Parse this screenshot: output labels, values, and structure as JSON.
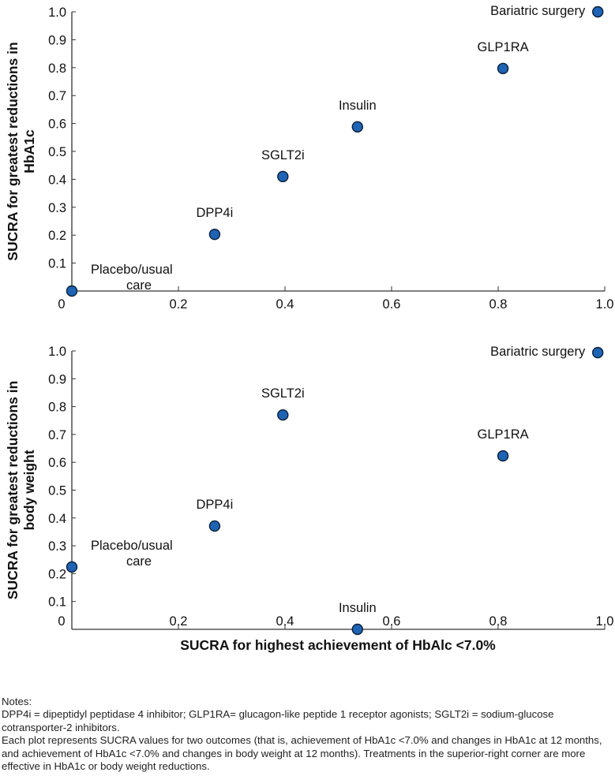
{
  "chart_data": [
    {
      "type": "scatter",
      "title": "",
      "xlabel": "",
      "ylabel_lines": [
        "SUCRA for greatest reductions in",
        "HbA1c"
      ],
      "xlim": [
        0,
        1.0
      ],
      "ylim": [
        0,
        1.0
      ],
      "xticks": [
        "0",
        "0.2",
        "0.4",
        "0.6",
        "0.8",
        "1.0"
      ],
      "yticks": [
        "0.1",
        "0.2",
        "0.3",
        "0.4",
        "0.5",
        "0.6",
        "0.7",
        "0.8",
        "0.9",
        "1.0"
      ],
      "grid": false,
      "points": [
        {
          "label_lines": [
            "Placebo/usual",
            "care"
          ],
          "x": 0.0,
          "y": 0.0
        },
        {
          "label_lines": [
            "DPP4i"
          ],
          "x": 0.268,
          "y": 0.203
        },
        {
          "label_lines": [
            "SGLT2i"
          ],
          "x": 0.396,
          "y": 0.41
        },
        {
          "label_lines": [
            "Insulin"
          ],
          "x": 0.536,
          "y": 0.588
        },
        {
          "label_lines": [
            "GLP1RA"
          ],
          "x": 0.809,
          "y": 0.797
        },
        {
          "label_lines": [
            "Bariatric surgery"
          ],
          "x": 0.987,
          "y": 1.0
        }
      ]
    },
    {
      "type": "scatter",
      "title": "",
      "xlabel": "SUCRA for highest achievement of HbAlc <7.0%",
      "ylabel_lines": [
        "SUCRA for greatest reductions in",
        "body weight"
      ],
      "xlim": [
        0,
        1.0
      ],
      "ylim": [
        0,
        1.0
      ],
      "xticks": [
        "0",
        "0.2",
        "0.4",
        "0.6",
        "0.8",
        "1.0"
      ],
      "yticks": [
        "0.1",
        "0.2",
        "0.3",
        "0.4",
        "0.5",
        "0.6",
        "0.7",
        "0.8",
        "0.9",
        "1.0"
      ],
      "grid": false,
      "points": [
        {
          "label_lines": [
            "Placebo/usual",
            "care"
          ],
          "x": 0.0,
          "y": 0.224
        },
        {
          "label_lines": [
            "DPP4i"
          ],
          "x": 0.268,
          "y": 0.371
        },
        {
          "label_lines": [
            "SGLT2i"
          ],
          "x": 0.396,
          "y": 0.77
        },
        {
          "label_lines": [
            "Insulin"
          ],
          "x": 0.536,
          "y": 0.0
        },
        {
          "label_lines": [
            "GLP1RA"
          ],
          "x": 0.809,
          "y": 0.623
        },
        {
          "label_lines": [
            "Bariatric surgery"
          ],
          "x": 0.987,
          "y": 0.994
        }
      ]
    }
  ],
  "colors": {
    "marker_fill": "#1f64b4",
    "marker_stroke": "#0a1f3a",
    "axis": "#333333"
  },
  "notes": {
    "heading": "Notes:",
    "line1": "DPP4i = dipeptidyl peptidase 4 inhibitor; GLP1RA= glucagon-like peptide 1 receptor agonists; SGLT2i = sodium-glucose cotransporter-2 inhibitors.",
    "line2": "Each plot represents SUCRA values for two outcomes (that is, achievement of HbA1c <7.0% and changes in HbA1c at 12 months, and achievement of HbA1c <7.0% and changes in body weight at 12 months). Treatments in the superior-right corner are more effective in HbA1c or body weight reductions."
  }
}
